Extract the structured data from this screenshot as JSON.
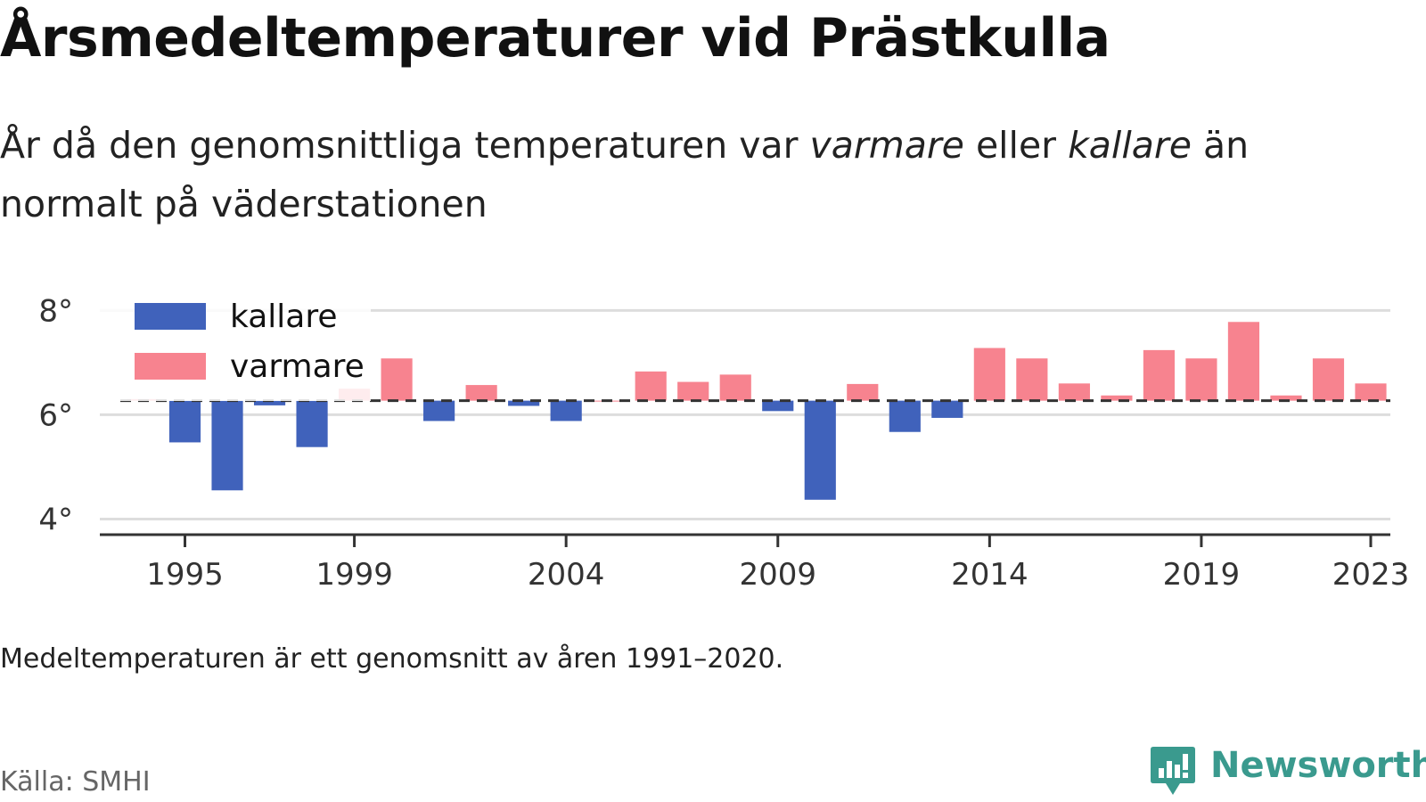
{
  "header": {
    "title": "Årsmedeltemperaturer vid Prästkulla",
    "subtitle_1": "År då den genomsnittliga temperaturen var ",
    "subtitle_warm": "varmare",
    "subtitle_2": " eller ",
    "subtitle_cold": "kallare",
    "subtitle_3": " än normalt på väderstationen"
  },
  "footer": {
    "note": "Medeltemperaturen är ett genomsnitt av åren 1991–2020.",
    "source": "Källa: SMHI",
    "brand": "Newsworthy"
  },
  "colors": {
    "cold": "#4062bb",
    "warm": "#f7838f",
    "brand": "#3a9a8e",
    "grid": "#dddddd",
    "axis": "#333333"
  },
  "chart_data": {
    "type": "bar",
    "baseline": 6.27,
    "ylim": [
      3.7,
      8.4
    ],
    "yticks": [
      4,
      6,
      8
    ],
    "ytick_labels": [
      "4°",
      "6°",
      "8°"
    ],
    "xticks": [
      1995,
      1999,
      2004,
      2009,
      2014,
      2019,
      2023
    ],
    "xtick_labels": [
      "1995",
      "1999",
      "2004",
      "2009",
      "2014",
      "2019",
      "2023"
    ],
    "legend": [
      {
        "key": "kallare",
        "label": "kallare",
        "color": "#4062bb"
      },
      {
        "key": "varmare",
        "label": "varmare",
        "color": "#f7838f"
      }
    ],
    "legend_position": "top-left",
    "grid": true,
    "x": [
      1994,
      1995,
      1996,
      1997,
      1998,
      1999,
      2000,
      2001,
      2002,
      2003,
      2004,
      2005,
      2006,
      2007,
      2008,
      2009,
      2010,
      2011,
      2012,
      2013,
      2014,
      2015,
      2016,
      2017,
      2018,
      2019,
      2020,
      2021,
      2022,
      2023
    ],
    "values": [
      6.3,
      5.47,
      4.55,
      6.18,
      5.38,
      6.5,
      7.08,
      5.88,
      6.57,
      6.17,
      5.88,
      6.27,
      6.83,
      6.63,
      6.77,
      6.07,
      4.37,
      6.59,
      5.67,
      5.94,
      7.28,
      7.08,
      6.6,
      6.37,
      7.24,
      7.08,
      7.78,
      6.37,
      7.08,
      6.6
    ]
  }
}
